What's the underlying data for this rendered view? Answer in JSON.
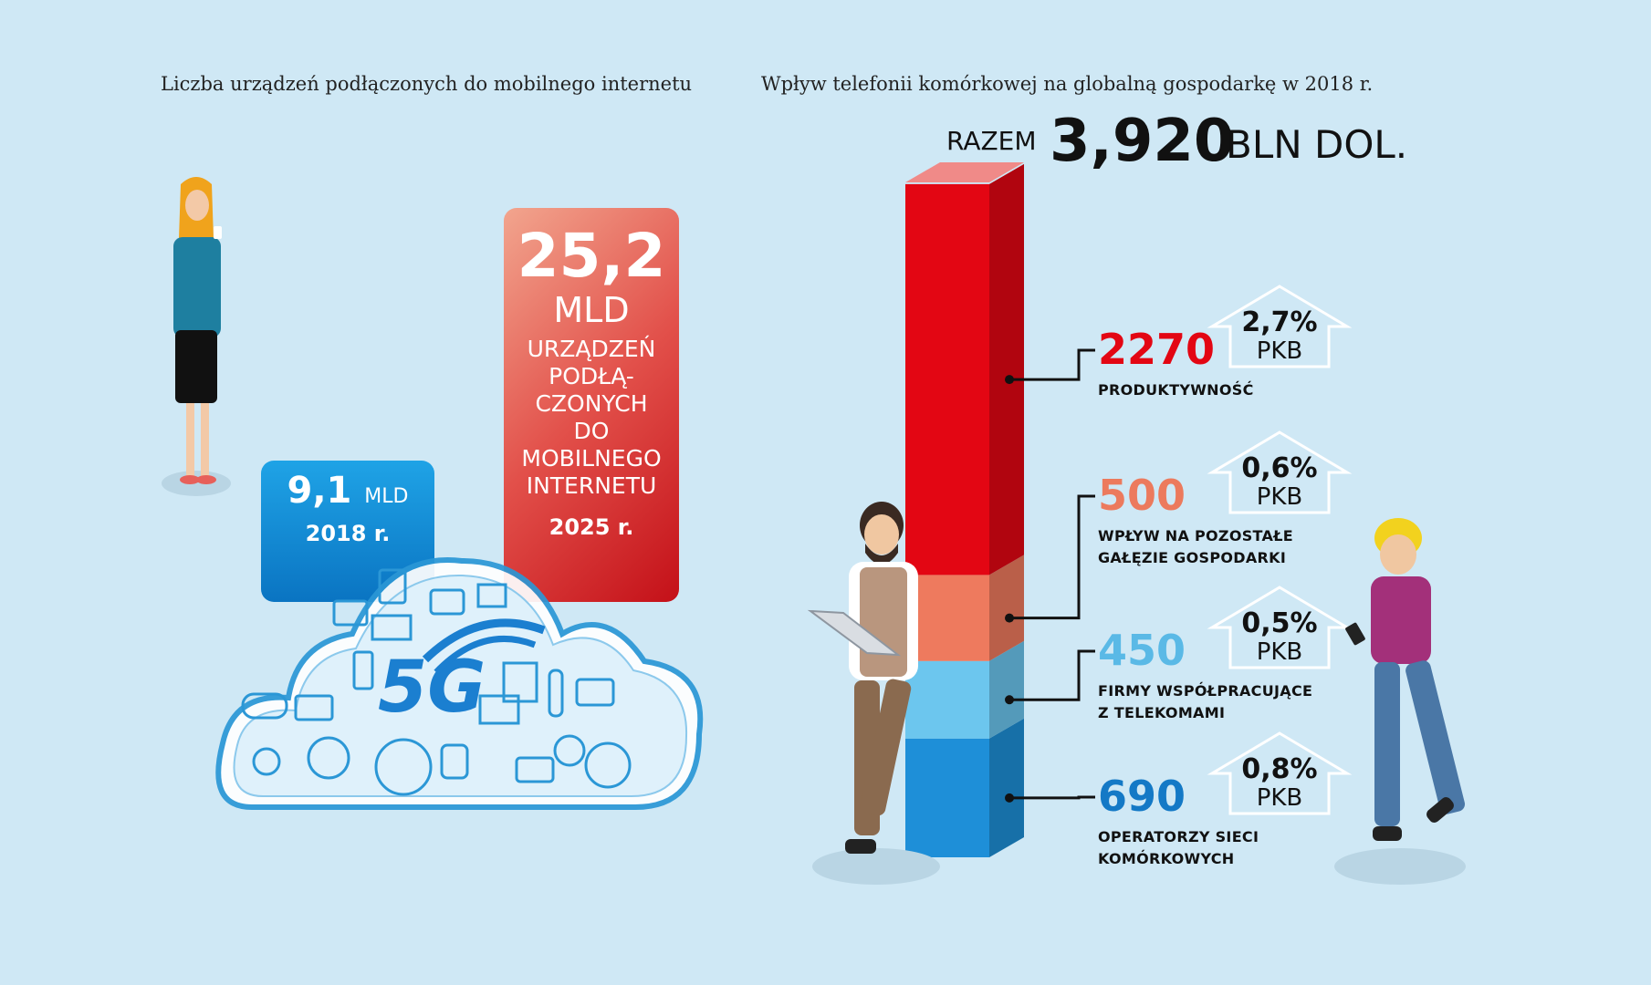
{
  "left": {
    "title": "Liczba urządzeń podłączonych do mobilnego internetu",
    "box_2018": {
      "value": "9,1",
      "unit": "MLD",
      "year": "2018 r."
    },
    "box_2025": {
      "value": "25,2",
      "unit": "MLD",
      "description": "URZĄDZEŃ\nPODŁĄ-\nCZONYCH\nDO\nMOBILNEGO\nINTERNETU",
      "year": "2025 r."
    },
    "cloud_badge": "5G"
  },
  "right": {
    "title": "Wpływ telefonii komórkowej na globalną gospodarkę w 2018 r.",
    "total_label": "RAZEM",
    "total_value": "3,920",
    "total_unit": "BLN DOL."
  },
  "chart_data": [
    {
      "type": "bar",
      "title": "Liczba urządzeń podłączonych do mobilnego internetu",
      "categories": [
        "2018 r.",
        "2025 r."
      ],
      "values": [
        9.1,
        25.2
      ],
      "unit": "MLD"
    },
    {
      "type": "bar",
      "stacked": true,
      "title": "Wpływ telefonii komórkowej na globalną gospodarkę w 2018 r.",
      "total": 3920,
      "unit": "BLN DOL.",
      "segments": [
        {
          "name": "OPERATORZY SIECI KOMÓRKOWYCH",
          "lines": [
            "OPERATORZY SIECI",
            "KOMÓRKOWYCH"
          ],
          "value": 690,
          "pkb": "0,8%",
          "color": "#1e8fd8",
          "text_color": "#1479c6"
        },
        {
          "name": "FIRMY WSPÓŁPRACUJĄCE Z TELEKOMAMI",
          "lines": [
            "FIRMY WSPÓŁPRACUJĄCE",
            "Z TELEKOMAMI"
          ],
          "value": 450,
          "pkb": "0,5%",
          "color": "#6cc6ee",
          "text_color": "#5ab9e6"
        },
        {
          "name": "WPŁYW NA POZOSTAŁE GAŁĘZIE GOSPODARKI",
          "lines": [
            "WPŁYW NA POZOSTAŁE",
            "GAŁĘZIE GOSPODARKI"
          ],
          "value": 500,
          "pkb": "0,6%",
          "color": "#ee7a5e",
          "text_color": "#ec7a5d"
        },
        {
          "name": "PRODUKTYWNOŚĆ",
          "lines": [
            "PRODUKTYWNOŚĆ"
          ],
          "value": 2270,
          "pkb": "2,7%",
          "color": "#e30613",
          "text_color": "#e30613"
        }
      ],
      "pkb_label": "PKB"
    }
  ]
}
